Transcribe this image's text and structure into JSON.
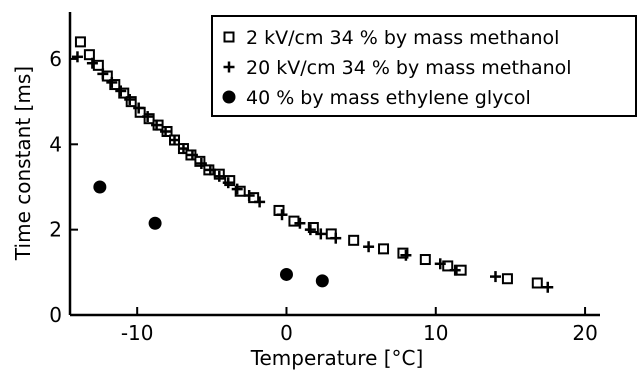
{
  "chart_data": {
    "type": "scatter",
    "title": "",
    "xlabel": "Temperature [°C]",
    "ylabel": "Time constant [ms]",
    "xlim": [
      -14.5,
      21
    ],
    "ylim": [
      0,
      7.1
    ],
    "xticks": [
      -10,
      0,
      10,
      20
    ],
    "xtick_labels": [
      "-10",
      "0",
      "10",
      "20"
    ],
    "yticks": [
      0,
      2,
      4,
      6
    ],
    "ytick_labels": [
      "0",
      "2",
      "4",
      "6"
    ],
    "grid": false,
    "legend_position": "top-right",
    "series": [
      {
        "name": "2 kV/cm 34 % by mass methanol",
        "marker": "square",
        "x": [
          -13.8,
          -13.2,
          -12.6,
          -12.0,
          -11.5,
          -10.9,
          -10.4,
          -9.8,
          -9.2,
          -8.6,
          -8.0,
          -7.5,
          -6.9,
          -6.4,
          -5.8,
          -5.2,
          -4.5,
          -3.8,
          -3.1,
          -2.2,
          -0.5,
          0.5,
          1.8,
          3.0,
          4.5,
          6.5,
          7.8,
          9.3,
          10.8,
          11.7,
          14.8,
          16.8
        ],
        "y": [
          6.4,
          6.1,
          5.85,
          5.6,
          5.4,
          5.2,
          5.0,
          4.75,
          4.6,
          4.45,
          4.3,
          4.1,
          3.9,
          3.75,
          3.6,
          3.4,
          3.3,
          3.15,
          2.9,
          2.75,
          2.45,
          2.2,
          2.05,
          1.9,
          1.75,
          1.55,
          1.45,
          1.3,
          1.15,
          1.05,
          0.85,
          0.75
        ]
      },
      {
        "name": "20 kV/cm 34 % by mass methanol",
        "marker": "plus",
        "x": [
          -14.0,
          -13.0,
          -12.3,
          -11.7,
          -11.1,
          -10.5,
          -9.9,
          -9.3,
          -8.7,
          -8.1,
          -7.5,
          -6.9,
          -6.3,
          -5.7,
          -5.1,
          -4.5,
          -3.9,
          -3.3,
          -2.5,
          -1.8,
          -0.3,
          0.9,
          1.6,
          2.3,
          3.3,
          5.5,
          8.0,
          10.3,
          11.3,
          14.0,
          17.5
        ],
        "y": [
          6.05,
          5.9,
          5.65,
          5.45,
          5.25,
          5.05,
          4.85,
          4.65,
          4.45,
          4.3,
          4.1,
          3.9,
          3.75,
          3.55,
          3.4,
          3.25,
          3.1,
          2.95,
          2.8,
          2.65,
          2.35,
          2.15,
          2.0,
          1.9,
          1.8,
          1.6,
          1.4,
          1.2,
          1.05,
          0.9,
          0.65
        ]
      },
      {
        "name": "40 % by mass ethylene glycol",
        "marker": "circle",
        "x": [
          -12.5,
          -8.8,
          0.0,
          2.4
        ],
        "y": [
          3.0,
          2.15,
          0.95,
          0.8
        ]
      }
    ]
  }
}
